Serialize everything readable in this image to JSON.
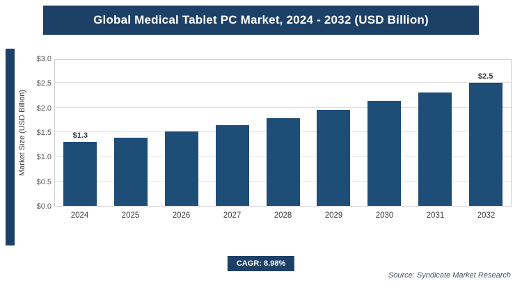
{
  "chart_data": {
    "type": "bar",
    "title": "Global Medical Tablet PC Market, 2024 - 2032 (USD Billion)",
    "categories": [
      "2024",
      "2025",
      "2026",
      "2027",
      "2028",
      "2029",
      "2030",
      "2031",
      "2032"
    ],
    "values": [
      1.3,
      1.38,
      1.51,
      1.64,
      1.79,
      1.95,
      2.13,
      2.31,
      2.5
    ],
    "bar_labels": [
      "$1.3",
      "",
      "",
      "",
      "",
      "",
      "",
      "",
      "$2.5"
    ],
    "xlabel": "",
    "ylabel": "Market Size (USD Billion)",
    "ylim": [
      0,
      3.0
    ],
    "yticks": [
      0.0,
      0.5,
      1.0,
      1.5,
      2.0,
      2.5,
      3.0
    ],
    "ytick_labels": [
      "$0.0",
      "$0.5",
      "$1.0",
      "$1.5",
      "$2.0",
      "$2.5",
      "$3.0"
    ],
    "grid": true,
    "legend": "none"
  },
  "footer": {
    "cagr": "CAGR: 8.98%",
    "source": "Source: Syndicate Market Research"
  },
  "colors": {
    "banner_bg": "#1d4166",
    "bar": "#1e4d78",
    "accent_strip": "#1d4166",
    "gridline": "#e0e0e0",
    "plot_border": "#cfcfcf",
    "tick_text": "#595959",
    "axis_text": "#404040",
    "source_text": "#44546a"
  }
}
